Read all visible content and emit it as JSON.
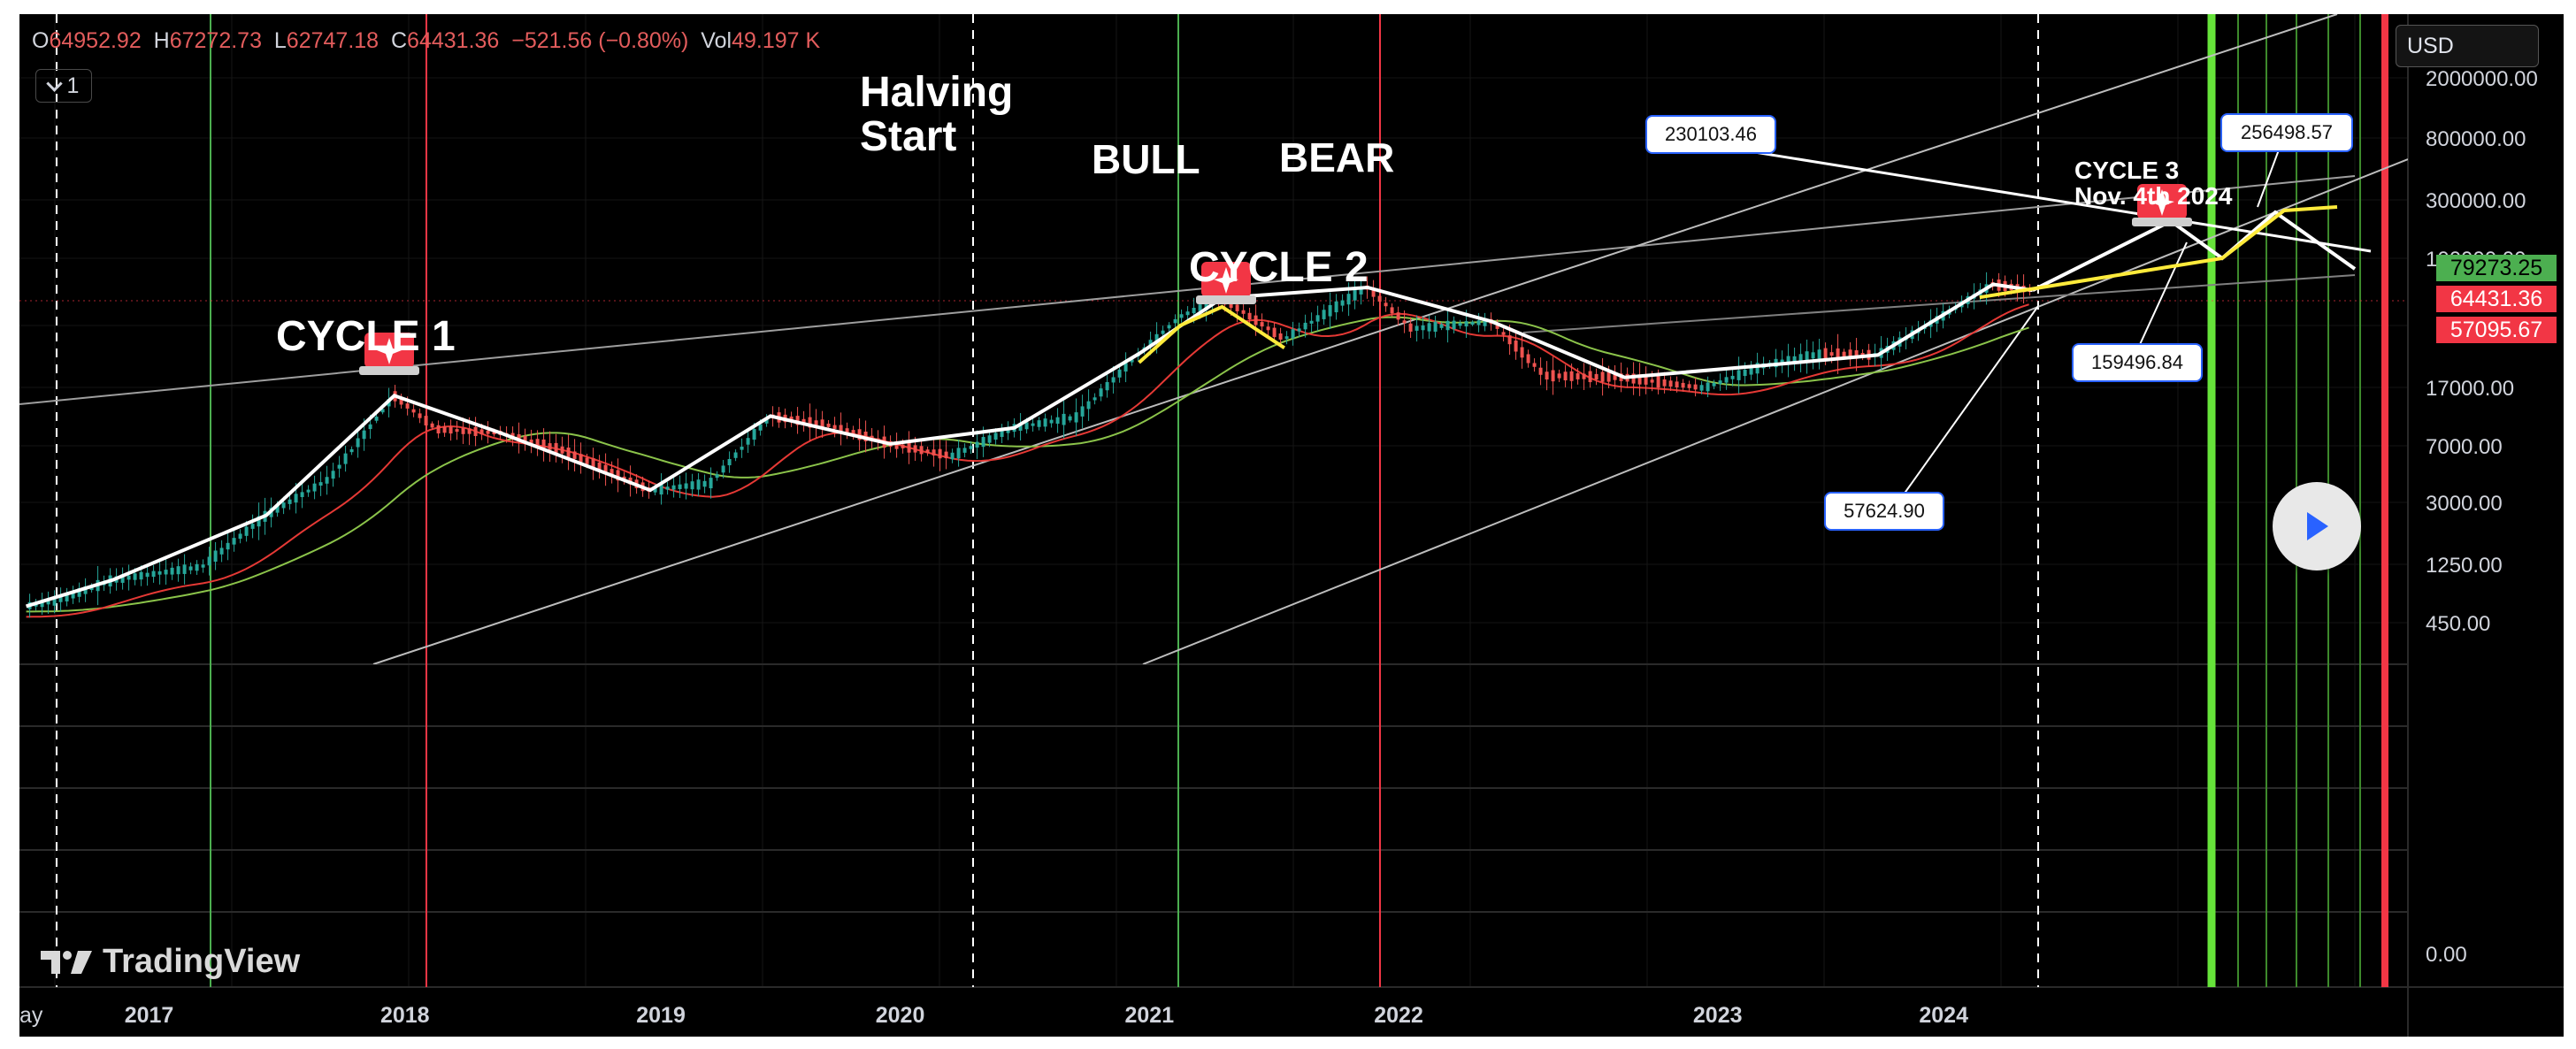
{
  "ohlc": {
    "o_label": "O",
    "o_value": "64952.92",
    "h_label": "H",
    "h_value": "67272.73",
    "l_label": "L",
    "l_value": "62747.18",
    "c_label": "C",
    "c_value": "64431.36",
    "change": "−521.56 (−0.80%)",
    "vol_label": "Vol",
    "vol_value": "49.197 K"
  },
  "interval": "1",
  "currency": "USD",
  "branding": "TradingView",
  "price_tags": {
    "green": "79273.25",
    "red1": "64431.36",
    "red2": "57095.67"
  },
  "annotations": {
    "halving_line1": "Halving",
    "halving_line2": "Start",
    "bull": "BULL",
    "bear": "BEAR",
    "cycle1": "CYCLE 1",
    "cycle2": "CYCLE 2",
    "cycle3_line1": "CYCLE 3",
    "cycle3_line2": "Nov. 4th 2024",
    "box_230103": "230103.46",
    "box_256498": "256498.57",
    "box_159496": "159496.84",
    "box_57624": "57624.90"
  },
  "colors": {
    "background": "#000000",
    "up_candle": "#26a69a",
    "down_candle": "#ef5350",
    "green_line": "#4caf50",
    "red_line": "#f23645",
    "yellow_line": "#ffeb3b",
    "ma_green": "#8bc34a",
    "ma_red": "#e53935"
  },
  "chart_data": {
    "type": "line",
    "title": "",
    "xlabel": "",
    "ylabel": "",
    "y_scale": "log",
    "x_ticks": [
      "ay",
      "2017",
      "2018",
      "2019",
      "2020",
      "2021",
      "2022",
      "2023",
      "2024"
    ],
    "y_ticks": [
      "2000000.00",
      "800000.00",
      "300000.00",
      "17000.00",
      "7000.00",
      "3000.00",
      "1250.00",
      "450.00"
    ],
    "y_tick_partial": "100000.00",
    "lower_pane_tick": "0.00",
    "ylim": [
      300,
      3000000
    ],
    "grid": true,
    "series": [
      {
        "name": "",
        "x": [
          "2016-06",
          "2016-09",
          "2016-12",
          "2017-03",
          "2017-06",
          "2017-09",
          "2017-12",
          "2018-02",
          "2018-05",
          "2018-08",
          "2018-12",
          "2019-03",
          "2019-06",
          "2019-09",
          "2019-12",
          "2020-03",
          "2020-06",
          "2020-09",
          "2020-12",
          "2021-02",
          "2021-04",
          "2021-07",
          "2021-11",
          "2022-01",
          "2022-04",
          "2022-06",
          "2022-09",
          "2022-12",
          "2023-03",
          "2023-06",
          "2023-09",
          "2023-12",
          "2024-03",
          "2024-05"
        ],
        "values": [
          600,
          650,
          950,
          1200,
          2500,
          4300,
          15000,
          9000,
          8500,
          6500,
          3600,
          4000,
          11000,
          9500,
          7200,
          6000,
          9200,
          10800,
          27000,
          45000,
          58000,
          33000,
          67000,
          38000,
          42000,
          20000,
          19500,
          16800,
          23000,
          27000,
          26500,
          42000,
          70000,
          64431
        ]
      }
    ]
  }
}
